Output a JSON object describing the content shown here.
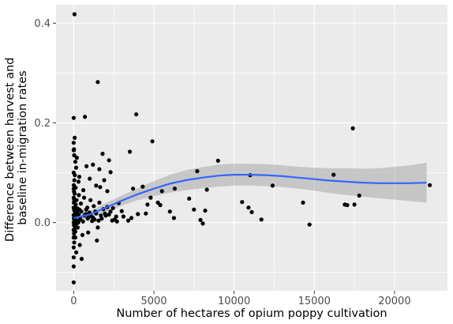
{
  "chart_data": {
    "type": "scatter",
    "title": "",
    "xlabel": "Number of hectares of opium poppy cultivation",
    "ylabel": [
      "Difference between harvest and",
      "baseline in-migration rates"
    ],
    "xlim": [
      -1100,
      23300
    ],
    "ylim": [
      -0.137,
      0.437
    ],
    "x_ticks": [
      0,
      5000,
      10000,
      15000,
      20000
    ],
    "x_tick_labels": [
      "0",
      "5000",
      "10000",
      "15000",
      "20000"
    ],
    "y_ticks": [
      0.0,
      0.2,
      0.4
    ],
    "y_tick_labels": [
      "0.0",
      "0.2",
      "0.4"
    ],
    "grid": true,
    "background": "#ebebeb",
    "grid_color": "#ffffff",
    "point_color": "#000000",
    "smooth_line_color": "#3366ff",
    "ribbon_color": "#999999",
    "points": [
      [
        50,
        0.418
      ],
      [
        1500,
        0.282
      ],
      [
        3900,
        0.217
      ],
      [
        700,
        0.212
      ],
      [
        0,
        0.21
      ],
      [
        17400,
        0.189
      ],
      [
        4900,
        0.163
      ],
      [
        60,
        0.17
      ],
      [
        20,
        0.147
      ],
      [
        3500,
        0.142
      ],
      [
        1800,
        0.138
      ],
      [
        30,
        0.135
      ],
      [
        200,
        0.13
      ],
      [
        2200,
        0.125
      ],
      [
        100,
        0.122
      ],
      [
        9000,
        0.124
      ],
      [
        1200,
        0.116
      ],
      [
        800,
        0.113
      ],
      [
        1600,
        0.107
      ],
      [
        150,
        0.11
      ],
      [
        2300,
        0.101
      ],
      [
        7700,
        0.103
      ],
      [
        11000,
        0.095
      ],
      [
        16200,
        0.096
      ],
      [
        350,
        0.092
      ],
      [
        1000,
        0.088
      ],
      [
        1900,
        0.085
      ],
      [
        300,
        0.082
      ],
      [
        4300,
        0.072
      ],
      [
        12400,
        0.074
      ],
      [
        6300,
        0.068
      ],
      [
        8300,
        0.066
      ],
      [
        17800,
        0.054
      ],
      [
        22200,
        0.075
      ],
      [
        1400,
        0.074
      ],
      [
        1650,
        0.071
      ],
      [
        600,
        0.065
      ],
      [
        2100,
        0.063
      ],
      [
        3700,
        0.068
      ],
      [
        5500,
        0.063
      ],
      [
        7200,
        0.048
      ],
      [
        10500,
        0.041
      ],
      [
        10900,
        0.03
      ],
      [
        11100,
        0.021
      ],
      [
        11700,
        0.006
      ],
      [
        14300,
        0.04
      ],
      [
        14700,
        -0.004
      ],
      [
        16900,
        0.036
      ],
      [
        17050,
        0.035
      ],
      [
        17500,
        0.036
      ],
      [
        7500,
        0.026
      ],
      [
        6000,
        0.022
      ],
      [
        6250,
        0.009
      ],
      [
        7900,
        0.005
      ],
      [
        8050,
        -0.002
      ],
      [
        8200,
        0.024
      ],
      [
        5400,
        0.035
      ],
      [
        5250,
        0.04
      ],
      [
        4800,
        0.05
      ],
      [
        4600,
        0.036
      ],
      [
        4500,
        0.018
      ],
      [
        4000,
        0.017
      ],
      [
        3600,
        0.009
      ],
      [
        3400,
        0.004
      ],
      [
        3000,
        0.023
      ],
      [
        2800,
        0.039
      ],
      [
        2650,
        0.012
      ],
      [
        2550,
        0.006
      ],
      [
        2450,
        0.029
      ],
      [
        2300,
        0.022
      ],
      [
        2100,
        0.031
      ],
      [
        1950,
        0.018
      ],
      [
        1850,
        0.027
      ],
      [
        1700,
        0.014
      ],
      [
        1600,
        0.04
      ],
      [
        1500,
        -0.01
      ],
      [
        1450,
        -0.036
      ],
      [
        1350,
        0.022
      ],
      [
        1250,
        0.033
      ],
      [
        1150,
        0.003
      ],
      [
        1050,
        0.045
      ],
      [
        950,
        0.012
      ],
      [
        900,
        -0.02
      ],
      [
        850,
        0.03
      ],
      [
        750,
        0.017
      ],
      [
        650,
        0.05
      ],
      [
        550,
        -0.025
      ],
      [
        500,
        -0.073
      ],
      [
        450,
        0.038
      ],
      [
        400,
        0.01
      ],
      [
        380,
        -0.045
      ],
      [
        320,
        0.055
      ],
      [
        280,
        0.0
      ],
      [
        250,
        -0.01
      ],
      [
        220,
        0.02
      ],
      [
        180,
        0.045
      ],
      [
        160,
        -0.06
      ],
      [
        140,
        0.015
      ],
      [
        120,
        0.07
      ],
      [
        100,
        -0.03
      ],
      [
        90,
        0.005
      ],
      [
        80,
        0.03
      ],
      [
        70,
        0.095
      ],
      [
        60,
        0.058
      ],
      [
        50,
        -0.015
      ],
      [
        40,
        0.085
      ],
      [
        35,
        0.01
      ],
      [
        30,
        -0.04
      ],
      [
        25,
        0.025
      ],
      [
        20,
        0.062
      ],
      [
        15,
        -0.005
      ],
      [
        10,
        0.04
      ],
      [
        5,
        0.075
      ],
      [
        0,
        -0.12
      ],
      [
        0,
        0.0
      ],
      [
        0,
        0.015
      ],
      [
        0,
        -0.015
      ],
      [
        0,
        0.03
      ],
      [
        0,
        -0.03
      ],
      [
        0,
        0.05
      ],
      [
        0,
        -0.05
      ],
      [
        0,
        0.068
      ],
      [
        0,
        0.1
      ],
      [
        0,
        0.145
      ],
      [
        0,
        0.16
      ],
      [
        0,
        -0.07
      ],
      [
        0,
        -0.088
      ],
      [
        10,
        0.008
      ],
      [
        20,
        -0.022
      ],
      [
        30,
        0.046
      ],
      [
        45,
        0.002
      ],
      [
        60,
        -0.008
      ],
      [
        75,
        0.022
      ],
      [
        95,
        -0.018
      ],
      [
        110,
        0.012
      ],
      [
        130,
        0.036
      ],
      [
        170,
        -0.002
      ],
      [
        210,
        0.004
      ],
      [
        240,
        0.028
      ],
      [
        300,
        0.016
      ],
      [
        360,
        0.026
      ],
      [
        420,
        0.006
      ],
      [
        480,
        0.022
      ],
      [
        580,
        0.002
      ],
      [
        680,
        0.014
      ],
      [
        780,
        0.026
      ],
      [
        880,
        0.008
      ],
      [
        980,
        0.02
      ],
      [
        1100,
        0.012
      ],
      [
        1200,
        0.01
      ],
      [
        1300,
        0.006
      ],
      [
        1400,
        0.018
      ],
      [
        1550,
        0.004
      ],
      [
        1750,
        0.008
      ],
      [
        2000,
        0.014
      ],
      [
        2200,
        0.016
      ],
      [
        2400,
        0.004
      ],
      [
        2700,
        0.002
      ],
      [
        3100,
        0.012
      ]
    ],
    "smooth_curve": [
      [
        0,
        0.009
      ],
      [
        1000,
        0.016
      ],
      [
        2000,
        0.03
      ],
      [
        3000,
        0.044
      ],
      [
        4000,
        0.057
      ],
      [
        5000,
        0.068
      ],
      [
        6000,
        0.078
      ],
      [
        7000,
        0.085
      ],
      [
        8000,
        0.09
      ],
      [
        9000,
        0.094
      ],
      [
        10000,
        0.096
      ],
      [
        11000,
        0.096
      ],
      [
        12000,
        0.095
      ],
      [
        13000,
        0.093
      ],
      [
        14000,
        0.09
      ],
      [
        15000,
        0.087
      ],
      [
        16000,
        0.084
      ],
      [
        17000,
        0.082
      ],
      [
        18000,
        0.08
      ],
      [
        19000,
        0.079
      ],
      [
        20000,
        0.079
      ],
      [
        21000,
        0.079
      ],
      [
        22000,
        0.08
      ]
    ],
    "confidence_band": [
      [
        0,
        0.002,
        0.016
      ],
      [
        1000,
        0.009,
        0.023
      ],
      [
        2000,
        0.021,
        0.039
      ],
      [
        3000,
        0.034,
        0.054
      ],
      [
        4000,
        0.045,
        0.069
      ],
      [
        5000,
        0.053,
        0.083
      ],
      [
        6000,
        0.06,
        0.096
      ],
      [
        7000,
        0.065,
        0.105
      ],
      [
        8000,
        0.069,
        0.111
      ],
      [
        9000,
        0.072,
        0.116
      ],
      [
        10000,
        0.074,
        0.118
      ],
      [
        11000,
        0.074,
        0.118
      ],
      [
        12000,
        0.073,
        0.117
      ],
      [
        13000,
        0.071,
        0.115
      ],
      [
        14000,
        0.068,
        0.112
      ],
      [
        15000,
        0.064,
        0.11
      ],
      [
        16000,
        0.059,
        0.109
      ],
      [
        17000,
        0.055,
        0.109
      ],
      [
        18000,
        0.052,
        0.108
      ],
      [
        19000,
        0.049,
        0.109
      ],
      [
        20000,
        0.046,
        0.112
      ],
      [
        21000,
        0.043,
        0.115
      ],
      [
        22000,
        0.04,
        0.12
      ]
    ]
  }
}
